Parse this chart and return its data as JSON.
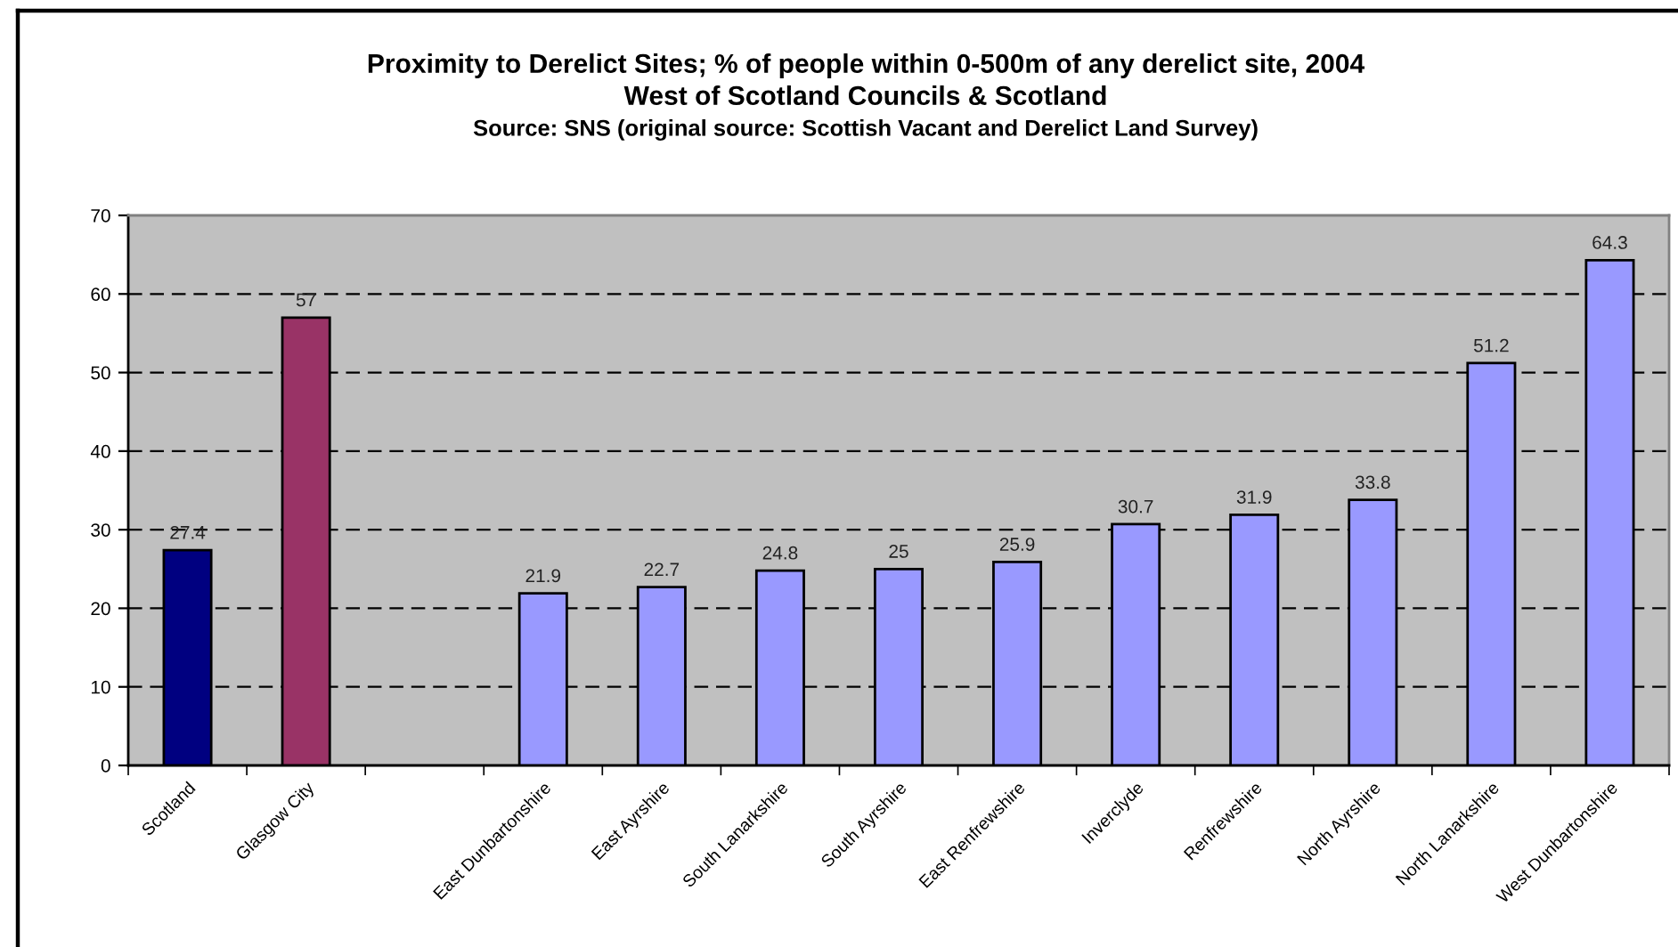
{
  "chart_data": {
    "type": "bar",
    "title": "Proximity to Derelict Sites; % of people within 0-500m of any derelict site, 2004",
    "subtitle": "West of Scotland Councils & Scotland",
    "annotations": [
      "Source: SNS (original source: Scottish Vacant and Derelict Land Survey)"
    ],
    "categories": [
      "Scotland",
      "Glasgow City",
      null,
      "East Dunbartonshire",
      "East Ayrshire",
      "South Lanarkshire",
      "South Ayrshire",
      "East Renfrewshire",
      "Inverclyde",
      "Renfrewshire",
      "North Ayrshire",
      "North Lanarkshire",
      "West Dunbartonshire"
    ],
    "values": [
      27.4,
      57,
      null,
      21.9,
      22.7,
      24.8,
      25,
      25.9,
      30.7,
      31.9,
      33.8,
      51.2,
      64.3
    ],
    "colors": [
      "#000080",
      "#993366",
      null,
      "#9999ff",
      "#9999ff",
      "#9999ff",
      "#9999ff",
      "#9999ff",
      "#9999ff",
      "#9999ff",
      "#9999ff",
      "#9999ff",
      "#9999ff"
    ],
    "ylim": [
      0,
      70
    ],
    "yticks": [
      0,
      10,
      20,
      30,
      40,
      50,
      60,
      70
    ],
    "grid": "y",
    "data_labels": true
  }
}
